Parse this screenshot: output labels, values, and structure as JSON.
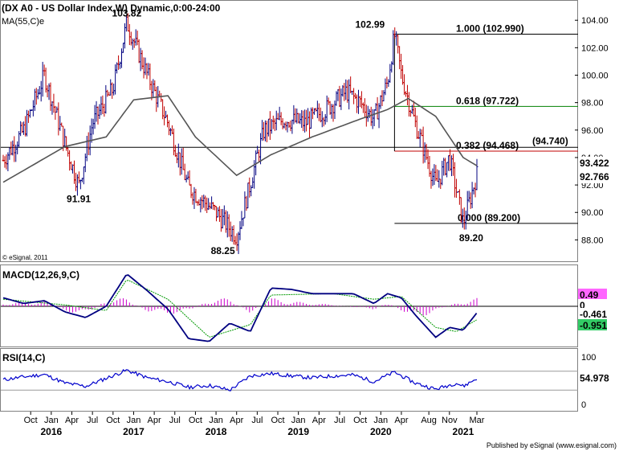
{
  "header": {
    "title": "(DX A0 - US Dollar Index,W) Dynamic,0:00-24:00",
    "ma_label": "MA(55,C)e",
    "copyright": "© eSignal, 2011",
    "publisher": "Published by eSignal (www.esignal.com)"
  },
  "chart_data": [
    {
      "type": "line",
      "panel": "price",
      "ylim": [
        86.5,
        105.3
      ],
      "yticks": [
        "104.00",
        "102.00",
        "100.00",
        "98.00",
        "96.00",
        "94.00",
        "92.00",
        "90.00",
        "88.00"
      ],
      "series": [
        {
          "role": "price-path",
          "color": "#c00000",
          "x": [
            "2015-06",
            "2015-09",
            "2015-12",
            "2016-03",
            "2016-05",
            "2016-07",
            "2016-10",
            "2016-12",
            "2017-03",
            "2017-06",
            "2017-09",
            "2018-01",
            "2018-04",
            "2018-08",
            "2018-11",
            "2019-02",
            "2019-05",
            "2019-08",
            "2019-10",
            "2019-12",
            "2020-02",
            "2020-03",
            "2020-04",
            "2020-06",
            "2020-09",
            "2020-11",
            "2021-01",
            "2021-03"
          ],
          "y": [
            93.8,
            96.0,
            100.0,
            95.0,
            91.91,
            96.5,
            99.0,
            103.82,
            100.0,
            96.5,
            91.8,
            90.0,
            88.25,
            96.0,
            96.8,
            96.5,
            97.5,
            98.8,
            98.0,
            96.8,
            99.5,
            102.99,
            100.0,
            96.5,
            92.0,
            94.0,
            89.2,
            92.766
          ]
        },
        {
          "role": "ma55",
          "name": "MA(55,C)e",
          "color": "#555555",
          "x": [
            "2015-06",
            "2016-03",
            "2016-09",
            "2017-01",
            "2017-06",
            "2017-10",
            "2018-04",
            "2018-09",
            "2019-03",
            "2019-10",
            "2020-02",
            "2020-05",
            "2020-09",
            "2021-01",
            "2021-03"
          ],
          "y": [
            92.2,
            94.8,
            95.5,
            98.2,
            98.5,
            95.5,
            92.7,
            94.2,
            95.5,
            96.8,
            97.5,
            98.3,
            97.0,
            94.0,
            93.4
          ]
        }
      ],
      "fib_levels": [
        {
          "label": "1.000 (102.990)",
          "value": 102.99,
          "color": "#000000"
        },
        {
          "label": "0.618 (97.722)",
          "value": 97.722,
          "color": "#008000"
        },
        {
          "label": "0.382 (94.468)",
          "value": 94.468,
          "color": "#c00000"
        },
        {
          "label": "0.000 (89.200)",
          "value": 89.2,
          "color": "#000000"
        }
      ],
      "horizontal_line": {
        "label": "(94.740)",
        "value": 94.74
      },
      "annotations": [
        {
          "text": "103.82",
          "x": "2016-12",
          "y": 103.82
        },
        {
          "text": "91.91",
          "x": "2016-05",
          "y": 91.91
        },
        {
          "text": "88.25",
          "x": "2018-02",
          "y": 88.25
        },
        {
          "text": "102.99",
          "x": "2020-02",
          "y": 102.99
        },
        {
          "text": "89.20",
          "x": "2021-01",
          "y": 89.2
        }
      ],
      "last_values": [
        {
          "text": "93.422",
          "value": 93.422,
          "color": "#555555"
        },
        {
          "text": "92.766",
          "value": 92.766,
          "color": "#000080"
        }
      ]
    },
    {
      "type": "line",
      "panel": "macd",
      "title": "MACD(12,26,9,C)",
      "ylim": [
        -2.8,
        2.8
      ],
      "series": [
        {
          "role": "macd-line",
          "color": "#000080",
          "x": [
            "2015-06",
            "2015-09",
            "2015-12",
            "2016-03",
            "2016-06",
            "2016-09",
            "2016-12",
            "2017-03",
            "2017-06",
            "2017-09",
            "2017-12",
            "2018-03",
            "2018-06",
            "2018-09",
            "2018-12",
            "2019-03",
            "2019-06",
            "2019-09",
            "2019-12",
            "2020-02",
            "2020-04",
            "2020-06",
            "2020-09",
            "2020-11",
            "2021-01",
            "2021-03"
          ],
          "y": [
            0.6,
            0.2,
            0.4,
            -0.4,
            -0.8,
            0.0,
            2.3,
            1.1,
            -0.2,
            -2.3,
            -2.5,
            -1.2,
            -1.8,
            1.3,
            1.2,
            0.9,
            0.9,
            0.9,
            0.2,
            0.9,
            0.6,
            -0.6,
            -2.2,
            -1.5,
            -1.7,
            -0.461
          ]
        },
        {
          "role": "signal-line",
          "color": "#009900",
          "x": [
            "2015-06",
            "2016-03",
            "2016-09",
            "2016-12",
            "2017-06",
            "2017-12",
            "2018-06",
            "2018-09",
            "2019-06",
            "2019-12",
            "2020-04",
            "2020-09",
            "2020-12",
            "2021-03"
          ],
          "y": [
            0.5,
            0.1,
            -0.3,
            1.9,
            0.5,
            -2.2,
            -1.3,
            0.8,
            0.9,
            0.5,
            0.7,
            -1.5,
            -1.8,
            -0.951
          ]
        },
        {
          "role": "histogram",
          "color": "#cc00cc",
          "x": [
            "2015-06",
            "2015-12",
            "2016-03",
            "2016-06",
            "2016-09",
            "2016-12",
            "2017-03",
            "2017-06",
            "2017-09",
            "2017-12",
            "2018-03",
            "2018-06",
            "2018-09",
            "2018-12",
            "2019-06",
            "2019-12",
            "2020-02",
            "2020-06",
            "2020-09",
            "2020-12",
            "2021-03"
          ],
          "y": [
            0.2,
            0.3,
            -0.3,
            -0.5,
            0.4,
            0.5,
            -0.3,
            -0.5,
            -0.3,
            0.4,
            0.5,
            -0.4,
            0.5,
            0.3,
            0.1,
            -0.2,
            0.3,
            -0.8,
            -0.3,
            0.2,
            0.49
          ]
        }
      ],
      "last_values": [
        {
          "text": "0.49",
          "value": 0.49,
          "color": "#cc00cc"
        },
        {
          "text": "0",
          "value": 0,
          "color": "#000000"
        },
        {
          "text": "-0.461",
          "value": -0.461,
          "color": "#000080"
        },
        {
          "text": "-0.951",
          "value": -0.951,
          "color": "#009900"
        }
      ]
    },
    {
      "type": "line",
      "panel": "rsi",
      "title": "RSI(14,C)",
      "ylim": [
        0,
        100
      ],
      "yticks": [
        "100",
        "0"
      ],
      "series": [
        {
          "role": "rsi-line",
          "color": "#0000cc",
          "x": [
            "2015-06",
            "2015-09",
            "2015-12",
            "2016-03",
            "2016-06",
            "2016-09",
            "2016-12",
            "2017-03",
            "2017-06",
            "2017-09",
            "2017-12",
            "2018-03",
            "2018-06",
            "2018-09",
            "2018-12",
            "2019-03",
            "2019-06",
            "2019-09",
            "2019-12",
            "2020-03",
            "2020-06",
            "2020-09",
            "2020-12",
            "2021-01",
            "2021-03"
          ],
          "y": [
            52,
            58,
            63,
            45,
            38,
            55,
            72,
            56,
            48,
            36,
            40,
            30,
            60,
            65,
            60,
            56,
            60,
            62,
            48,
            68,
            45,
            32,
            45,
            38,
            54.978
          ]
        }
      ],
      "last_values": [
        {
          "text": "54.978",
          "value": 54.978,
          "color": "#000080"
        }
      ]
    }
  ],
  "x_axis": {
    "ticks": [
      {
        "text": "Oct",
        "x": "2015-10"
      },
      {
        "text": "Jan",
        "x": "2016-01"
      },
      {
        "text": "Apr",
        "x": "2016-04"
      },
      {
        "text": "Jul",
        "x": "2016-07"
      },
      {
        "text": "Oct",
        "x": "2016-10"
      },
      {
        "text": "Jan",
        "x": "2017-01"
      },
      {
        "text": "Apr",
        "x": "2017-04"
      },
      {
        "text": "Jul",
        "x": "2017-07"
      },
      {
        "text": "Oct",
        "x": "2017-10"
      },
      {
        "text": "Jan",
        "x": "2018-01"
      },
      {
        "text": "Apr",
        "x": "2018-04"
      },
      {
        "text": "Jul",
        "x": "2018-07"
      },
      {
        "text": "Oct",
        "x": "2018-10"
      },
      {
        "text": "Jan",
        "x": "2019-01"
      },
      {
        "text": "Apr",
        "x": "2019-04"
      },
      {
        "text": "Jul",
        "x": "2019-07"
      },
      {
        "text": "Oct",
        "x": "2019-10"
      },
      {
        "text": "Jan",
        "x": "2020-01"
      },
      {
        "text": "Apr",
        "x": "2020-04"
      },
      {
        "text": "Aug",
        "x": "2020-08"
      },
      {
        "text": "Nov",
        "x": "2020-11"
      },
      {
        "text": "Mar",
        "x": "2021-03"
      }
    ],
    "years": [
      {
        "text": "2016",
        "x": "2016-01"
      },
      {
        "text": "2017",
        "x": "2017-01"
      },
      {
        "text": "2018",
        "x": "2018-01"
      },
      {
        "text": "2019",
        "x": "2019-01"
      },
      {
        "text": "2020",
        "x": "2020-01"
      },
      {
        "text": "2021",
        "x": "2021-01"
      }
    ]
  }
}
